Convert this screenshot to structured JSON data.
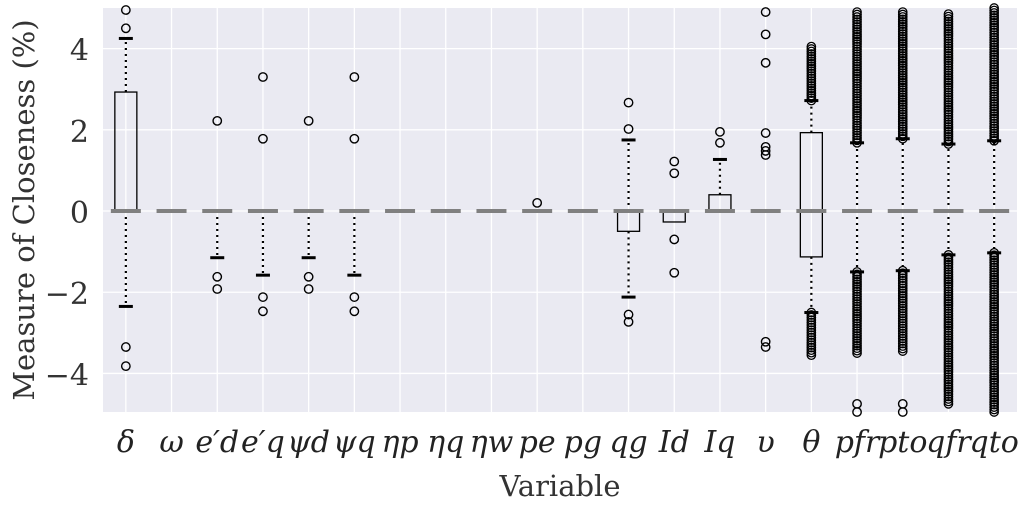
{
  "chart_data": {
    "type": "box",
    "xlabel": "Variable",
    "ylabel": "Measure of Closeness (%)",
    "ylim": [
      -4.95,
      5.0
    ],
    "yticks": [
      -4,
      -2,
      0,
      2,
      4
    ],
    "ytick_labels": [
      "−4",
      "−2",
      "0",
      "2",
      "4"
    ],
    "grid": true,
    "colors": {
      "background": "#eaeaf2",
      "grid": "#ffffff",
      "median": "#808080",
      "box": "#000000"
    },
    "categories": [
      {
        "label": "δ",
        "q1": 0.0,
        "median": 0.0,
        "q3": 2.93,
        "whisker_low": -2.35,
        "whisker_high": 4.25,
        "fliers": [
          -3.35,
          -3.82,
          4.5,
          4.95
        ]
      },
      {
        "label": "ω",
        "q1": 0.0,
        "median": 0.0,
        "q3": 0.0,
        "whisker_low": 0.0,
        "whisker_high": 0.0,
        "fliers": []
      },
      {
        "label": "e′d",
        "q1": 0.0,
        "median": 0.0,
        "q3": 0.0,
        "whisker_low": -1.15,
        "whisker_high": 0.0,
        "fliers": [
          2.22,
          -1.62,
          -1.92
        ]
      },
      {
        "label": "e′q",
        "q1": 0.0,
        "median": 0.0,
        "q3": 0.0,
        "whisker_low": -1.58,
        "whisker_high": 0.0,
        "fliers": [
          3.3,
          1.78,
          -2.12,
          -2.47
        ]
      },
      {
        "label": "ψd",
        "q1": 0.0,
        "median": 0.0,
        "q3": 0.0,
        "whisker_low": -1.15,
        "whisker_high": 0.0,
        "fliers": [
          2.22,
          -1.62,
          -1.92
        ]
      },
      {
        "label": "ψq",
        "q1": 0.0,
        "median": 0.0,
        "q3": 0.0,
        "whisker_low": -1.58,
        "whisker_high": 0.0,
        "fliers": [
          3.3,
          1.78,
          -2.12,
          -2.47
        ]
      },
      {
        "label": "ηp",
        "q1": 0.0,
        "median": 0.0,
        "q3": 0.0,
        "whisker_low": 0.0,
        "whisker_high": 0.0,
        "fliers": []
      },
      {
        "label": "ηq",
        "q1": 0.0,
        "median": 0.0,
        "q3": 0.0,
        "whisker_low": 0.0,
        "whisker_high": 0.0,
        "fliers": []
      },
      {
        "label": "ηw",
        "q1": 0.0,
        "median": 0.0,
        "q3": 0.0,
        "whisker_low": 0.0,
        "whisker_high": 0.0,
        "fliers": []
      },
      {
        "label": "pe",
        "q1": 0.0,
        "median": 0.0,
        "q3": 0.0,
        "whisker_low": 0.0,
        "whisker_high": 0.0,
        "fliers": [
          0.2
        ]
      },
      {
        "label": "pg",
        "q1": 0.0,
        "median": 0.0,
        "q3": 0.0,
        "whisker_low": 0.0,
        "whisker_high": 0.0,
        "fliers": []
      },
      {
        "label": "qg",
        "q1": -0.5,
        "median": 0.0,
        "q3": 0.0,
        "whisker_low": -2.12,
        "whisker_high": 1.75,
        "fliers": [
          2.67,
          2.02,
          -2.55,
          -2.73
        ]
      },
      {
        "label": "Id",
        "q1": -0.27,
        "median": 0.0,
        "q3": 0.0,
        "whisker_low": -0.27,
        "whisker_high": 0.0,
        "fliers": [
          1.22,
          0.93,
          -0.7,
          -1.52
        ]
      },
      {
        "label": "Iq",
        "q1": 0.0,
        "median": 0.0,
        "q3": 0.4,
        "whisker_low": 0.0,
        "whisker_high": 1.27,
        "fliers": [
          1.95,
          1.68
        ]
      },
      {
        "label": "υ",
        "q1": 0.0,
        "median": 0.0,
        "q3": 0.0,
        "whisker_low": 0.0,
        "whisker_high": 0.0,
        "fliers": [
          4.9,
          4.35,
          3.65,
          1.92,
          1.58,
          1.48,
          1.38,
          -3.22,
          -3.35
        ]
      },
      {
        "label": "θ",
        "q1": -1.13,
        "median": 0.0,
        "q3": 1.93,
        "whisker_low": -2.5,
        "whisker_high": 2.72,
        "fliers_dense": [
          [
            2.72,
            4.05
          ],
          [
            -3.55,
            -2.5
          ]
        ]
      },
      {
        "label": "pfr",
        "q1": 0.0,
        "median": 0.0,
        "q3": 0.0,
        "whisker_low": -1.5,
        "whisker_high": 1.68,
        "fliers_dense": [
          [
            1.68,
            4.9
          ],
          [
            -3.5,
            -1.5
          ]
        ],
        "fliers": [
          -4.75,
          -4.95
        ]
      },
      {
        "label": "pto",
        "q1": 0.0,
        "median": 0.0,
        "q3": 0.0,
        "whisker_low": -1.47,
        "whisker_high": 1.78,
        "fliers_dense": [
          [
            1.78,
            4.9
          ],
          [
            -3.45,
            -1.47
          ]
        ],
        "fliers": [
          -4.75,
          -4.95
        ]
      },
      {
        "label": "qfr",
        "q1": 0.0,
        "median": 0.0,
        "q3": 0.0,
        "whisker_low": -1.08,
        "whisker_high": 1.65,
        "fliers_dense": [
          [
            1.65,
            4.85
          ],
          [
            -4.75,
            -1.08
          ]
        ]
      },
      {
        "label": "qto",
        "q1": 0.0,
        "median": 0.0,
        "q3": 0.0,
        "whisker_low": -1.03,
        "whisker_high": 1.73,
        "fliers_dense": [
          [
            1.73,
            5.0
          ],
          [
            -4.95,
            -1.03
          ]
        ]
      }
    ]
  }
}
